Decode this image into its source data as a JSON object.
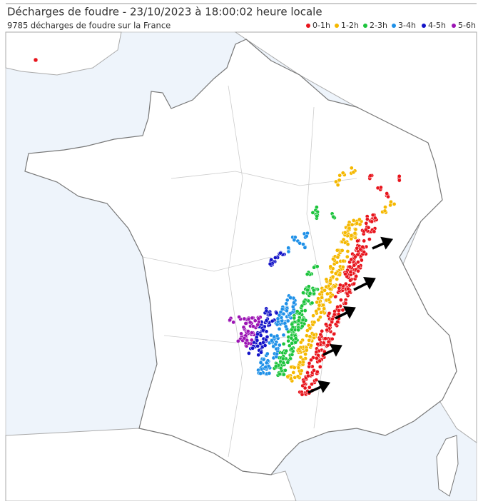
{
  "header": {
    "title": "Décharges de foudre - 23/10/2023 à 18:00:02 heure locale",
    "subtitle": "9785 décharges de foudre sur la France"
  },
  "legend": [
    {
      "label": "0-1h",
      "color": "#e8141c"
    },
    {
      "label": "1-2h",
      "color": "#f5b800"
    },
    {
      "label": "2-3h",
      "color": "#1cc43c"
    },
    {
      "label": "3-4h",
      "color": "#1e90e8"
    },
    {
      "label": "4-5h",
      "color": "#1414c8"
    },
    {
      "label": "5-6h",
      "color": "#9c14b4"
    }
  ]
}
